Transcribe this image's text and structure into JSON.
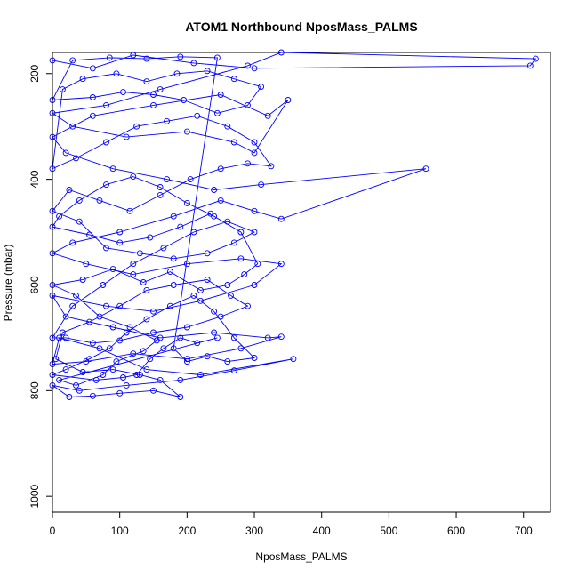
{
  "chart_data": {
    "type": "scatter",
    "title": "ATOM1 Northbound NposMass_PALMS",
    "xlabel": "NposMass_PALMS",
    "ylabel": "Pressure (mbar)",
    "xlim": [
      0,
      740
    ],
    "ylim": [
      1030,
      160
    ],
    "y_reversed": true,
    "x_ticks": [
      0,
      100,
      200,
      300,
      400,
      500,
      600,
      700
    ],
    "x_tick_labels": [
      "0",
      "100",
      "200",
      "300",
      "400",
      "500",
      "600",
      "700"
    ],
    "y_ticks": [
      200,
      400,
      600,
      800,
      1000
    ],
    "y_tick_labels": [
      "200",
      "400",
      "600",
      "800",
      "1000"
    ],
    "grid": false,
    "legend": "none",
    "series_color": "#0000ff",
    "points": [
      [
        0,
        175
      ],
      [
        60,
        190
      ],
      [
        120,
        165
      ],
      [
        210,
        180
      ],
      [
        300,
        190
      ],
      [
        710,
        185
      ],
      [
        718,
        172
      ],
      [
        340,
        160
      ],
      [
        290,
        185
      ],
      [
        160,
        230
      ],
      [
        80,
        260
      ],
      [
        0,
        275
      ],
      [
        30,
        300
      ],
      [
        110,
        320
      ],
      [
        200,
        310
      ],
      [
        270,
        330
      ],
      [
        300,
        350
      ],
      [
        350,
        250
      ],
      [
        320,
        280
      ],
      [
        250,
        240
      ],
      [
        150,
        260
      ],
      [
        60,
        280
      ],
      [
        0,
        320
      ],
      [
        20,
        350
      ],
      [
        90,
        380
      ],
      [
        170,
        400
      ],
      [
        240,
        420
      ],
      [
        310,
        410
      ],
      [
        555,
        380
      ],
      [
        340,
        475
      ],
      [
        300,
        460
      ],
      [
        250,
        440
      ],
      [
        180,
        470
      ],
      [
        100,
        500
      ],
      [
        30,
        520
      ],
      [
        0,
        540
      ],
      [
        50,
        560
      ],
      [
        120,
        580
      ],
      [
        200,
        560
      ],
      [
        280,
        550
      ],
      [
        340,
        560
      ],
      [
        300,
        600
      ],
      [
        220,
        630
      ],
      [
        150,
        650
      ],
      [
        80,
        640
      ],
      [
        0,
        620
      ],
      [
        20,
        660
      ],
      [
        90,
        680
      ],
      [
        160,
        700
      ],
      [
        240,
        690
      ],
      [
        320,
        700
      ],
      [
        340,
        698
      ],
      [
        280,
        720
      ],
      [
        200,
        740
      ],
      [
        120,
        730
      ],
      [
        50,
        745
      ],
      [
        0,
        750
      ],
      [
        10,
        700
      ],
      [
        70,
        720
      ],
      [
        140,
        760
      ],
      [
        220,
        770
      ],
      [
        358,
        740
      ],
      [
        270,
        762
      ],
      [
        190,
        780
      ],
      [
        110,
        790
      ],
      [
        40,
        800
      ],
      [
        0,
        790
      ],
      [
        25,
        812
      ],
      [
        60,
        810
      ],
      [
        100,
        805
      ],
      [
        150,
        800
      ],
      [
        190,
        812
      ],
      [
        160,
        780
      ],
      [
        130,
        770
      ],
      [
        90,
        760
      ],
      [
        45,
        765
      ],
      [
        5,
        740
      ],
      [
        15,
        690
      ],
      [
        55,
        670
      ],
      [
        100,
        640
      ],
      [
        140,
        610
      ],
      [
        180,
        600
      ],
      [
        230,
        590
      ],
      [
        265,
        620
      ],
      [
        290,
        640
      ],
      [
        250,
        660
      ],
      [
        200,
        680
      ],
      [
        150,
        690
      ],
      [
        100,
        705
      ],
      [
        60,
        710
      ],
      [
        20,
        700
      ],
      [
        0,
        700
      ],
      [
        30,
        640
      ],
      [
        75,
        600
      ],
      [
        120,
        560
      ],
      [
        165,
        530
      ],
      [
        210,
        500
      ],
      [
        260,
        480
      ],
      [
        300,
        500
      ],
      [
        270,
        520
      ],
      [
        230,
        540
      ],
      [
        180,
        550
      ],
      [
        130,
        540
      ],
      [
        80,
        530
      ],
      [
        40,
        480
      ],
      [
        0,
        460
      ],
      [
        25,
        420
      ],
      [
        70,
        440
      ],
      [
        115,
        460
      ],
      [
        160,
        430
      ],
      [
        205,
        400
      ],
      [
        250,
        380
      ],
      [
        290,
        370
      ],
      [
        325,
        375
      ],
      [
        300,
        330
      ],
      [
        260,
        300
      ],
      [
        215,
        280
      ],
      [
        170,
        290
      ],
      [
        125,
        300
      ],
      [
        80,
        330
      ],
      [
        35,
        360
      ],
      [
        0,
        380
      ],
      [
        15,
        230
      ],
      [
        45,
        210
      ],
      [
        95,
        200
      ],
      [
        140,
        215
      ],
      [
        185,
        200
      ],
      [
        230,
        195
      ],
      [
        270,
        210
      ],
      [
        310,
        225
      ],
      [
        290,
        260
      ],
      [
        245,
        275
      ],
      [
        195,
        250
      ],
      [
        150,
        240
      ],
      [
        105,
        235
      ],
      [
        60,
        245
      ],
      [
        0,
        250
      ],
      [
        30,
        175
      ],
      [
        85,
        170
      ],
      [
        140,
        172
      ],
      [
        190,
        168
      ],
      [
        245,
        170
      ],
      [
        180,
        720
      ],
      [
        200,
        745
      ],
      [
        230,
        735
      ],
      [
        260,
        745
      ],
      [
        300,
        738
      ],
      [
        270,
        700
      ],
      [
        240,
        650
      ],
      [
        210,
        620
      ],
      [
        175,
        640
      ],
      [
        140,
        665
      ],
      [
        110,
        690
      ],
      [
        85,
        720
      ],
      [
        55,
        740
      ],
      [
        20,
        760
      ],
      [
        0,
        770
      ],
      [
        65,
        780
      ],
      [
        105,
        775
      ],
      [
        125,
        770
      ],
      [
        145,
        740
      ],
      [
        165,
        720
      ],
      [
        190,
        700
      ],
      [
        215,
        710
      ],
      [
        245,
        700
      ],
      [
        10,
        780
      ],
      [
        35,
        790
      ],
      [
        75,
        770
      ],
      [
        95,
        745
      ],
      [
        135,
        725
      ],
      [
        155,
        705
      ],
      [
        115,
        680
      ],
      [
        70,
        660
      ],
      [
        35,
        620
      ],
      [
        0,
        600
      ],
      [
        45,
        590
      ],
      [
        90,
        570
      ],
      [
        135,
        595
      ],
      [
        175,
        575
      ],
      [
        220,
        610
      ],
      [
        260,
        600
      ],
      [
        285,
        580
      ],
      [
        305,
        560
      ],
      [
        280,
        500
      ],
      [
        240,
        470
      ],
      [
        200,
        445
      ],
      [
        160,
        415
      ],
      [
        120,
        395
      ],
      [
        80,
        410
      ],
      [
        40,
        440
      ],
      [
        10,
        470
      ],
      [
        0,
        490
      ],
      [
        55,
        505
      ],
      [
        100,
        520
      ],
      [
        145,
        510
      ],
      [
        190,
        490
      ],
      [
        235,
        465
      ]
    ]
  }
}
